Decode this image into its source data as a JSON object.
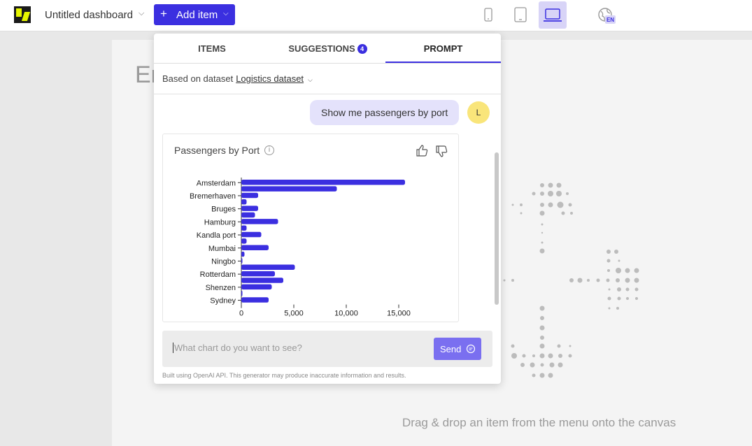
{
  "topbar": {
    "dashboard_title": "Untitled dashboard",
    "add_item_label": "Add item",
    "language_badge": "EN"
  },
  "canvas": {
    "title_partial": "En",
    "drop_hint": "Drag & drop an item from the menu onto the canvas"
  },
  "panel": {
    "tabs": [
      {
        "label": "ITEMS"
      },
      {
        "label": "SUGGESTIONS",
        "badge": "4"
      },
      {
        "label": "PROMPT",
        "active": true
      }
    ],
    "dataset_prefix": "Based on dataset",
    "dataset_name": "Logistics dataset",
    "user_message": "Show me passengers by port",
    "avatar_initial": "L",
    "prompt_placeholder": "What chart do you want to see?",
    "send_label": "Send",
    "disclaimer": "Built using OpenAI API. This generator may produce inaccurate information and results."
  },
  "chart_data": {
    "type": "bar",
    "orientation": "horizontal",
    "title": "Passengers by Port",
    "tick_labels": [
      "Amsterdam",
      "Bremerhaven",
      "Bruges",
      "Hamburg",
      "Kandla port",
      "Mumbai",
      "Ningbo",
      "Rotterdam",
      "Shenzen",
      "Sydney"
    ],
    "bar_values": [
      15600,
      9100,
      1600,
      500,
      1600,
      1300,
      3500,
      500,
      1900,
      500,
      2600,
      300,
      100,
      5100,
      3200,
      4000,
      2900,
      100,
      2600
    ],
    "x_ticks": [
      0,
      5000,
      10000,
      15000
    ],
    "x_tick_labels": [
      "0",
      "5,000",
      "10,000",
      "15,000"
    ],
    "xlim": [
      0,
      17000
    ],
    "bar_color": "#3b2fe0"
  },
  "colors": {
    "accent": "#3b2fe0",
    "send_button": "#7a6ff0",
    "message_bubble": "#e4e2fb",
    "avatar": "#f9e57a"
  }
}
